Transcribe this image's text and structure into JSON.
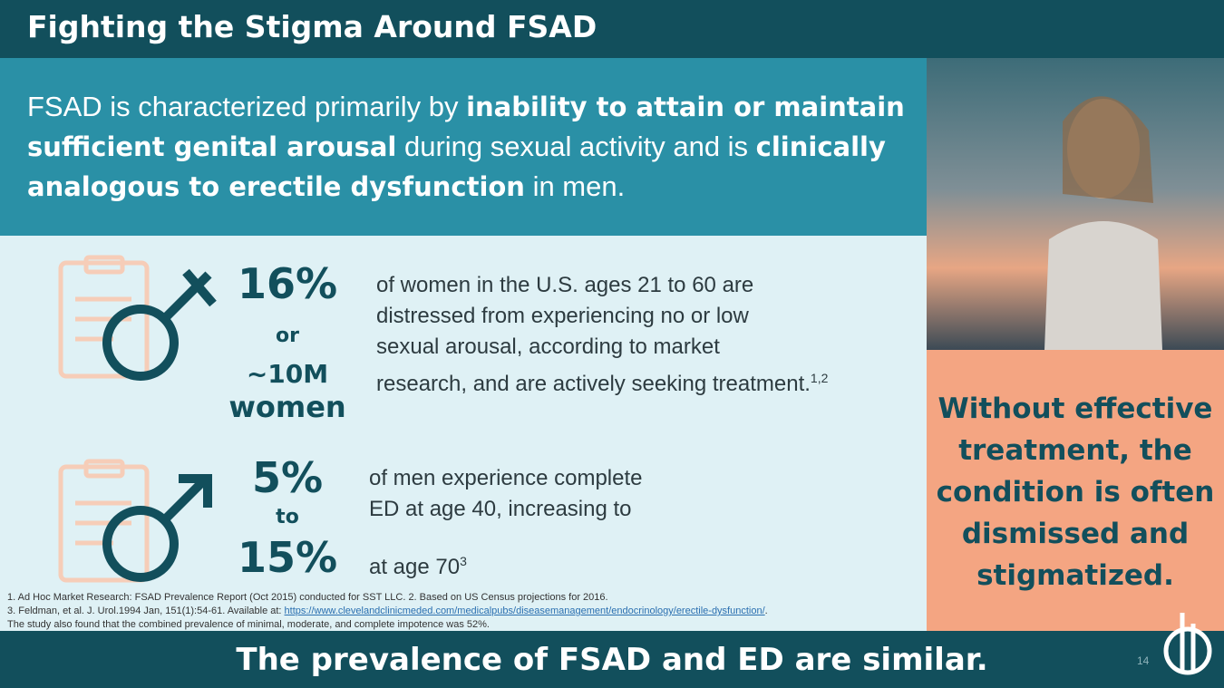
{
  "header": {
    "title": "Fighting the Stigma Around FSAD"
  },
  "intro": {
    "segments": [
      {
        "text": "FSAD is characterized primarily by ",
        "bold": false
      },
      {
        "text": "inability to attain or maintain sufficient genital arousal",
        "bold": true
      },
      {
        "text": " during sexual activity and is ",
        "bold": false
      },
      {
        "text": "clinically analogous to erectile dysfunction",
        "bold": true
      },
      {
        "text": " in men.",
        "bold": false
      }
    ]
  },
  "stats": [
    {
      "figure": [
        "16%",
        "or",
        "~10M",
        "women"
      ],
      "description": [
        "of women in the U.S. ages 21 to 60 are",
        "distressed from experiencing no or low",
        "sexual arousal, according to market",
        "research, and are actively seeking treatment."
      ],
      "superscript": "1,2"
    },
    {
      "figure": [
        "5%",
        "to",
        "15%"
      ],
      "description": [
        "of men experience complete",
        "ED at age 40, increasing to",
        "at age 70"
      ],
      "superscript": "3"
    }
  ],
  "footnotes": [
    [
      {
        "text": "1. Ad Hoc Market Research: FSAD Prevalence Report (Oct 2015) conducted for SST LLC. 2. Based on US Census projections for 2016.",
        "link": false
      }
    ],
    [
      {
        "text": "3. Feldman, et al. J. Urol.1994 Jan, 151(1):54-61.  Available at: ",
        "link": false
      },
      {
        "text": "https://www.clevelandclinicmeded.com/medicalpubs/diseasemanagement/endocrinology/erectile-dysfunction/",
        "link": true
      },
      {
        "text": ".",
        "link": false
      }
    ],
    [
      {
        "text": "The study also found that the combined prevalence of minimal, moderate, and complete impotence was 52%.",
        "link": false
      }
    ]
  ],
  "callout": "Without effective treatment, the condition is often dismissed and stigmatized.",
  "footer": {
    "text": "The prevalence of FSAD and ED are similar.",
    "page_number": "14"
  }
}
